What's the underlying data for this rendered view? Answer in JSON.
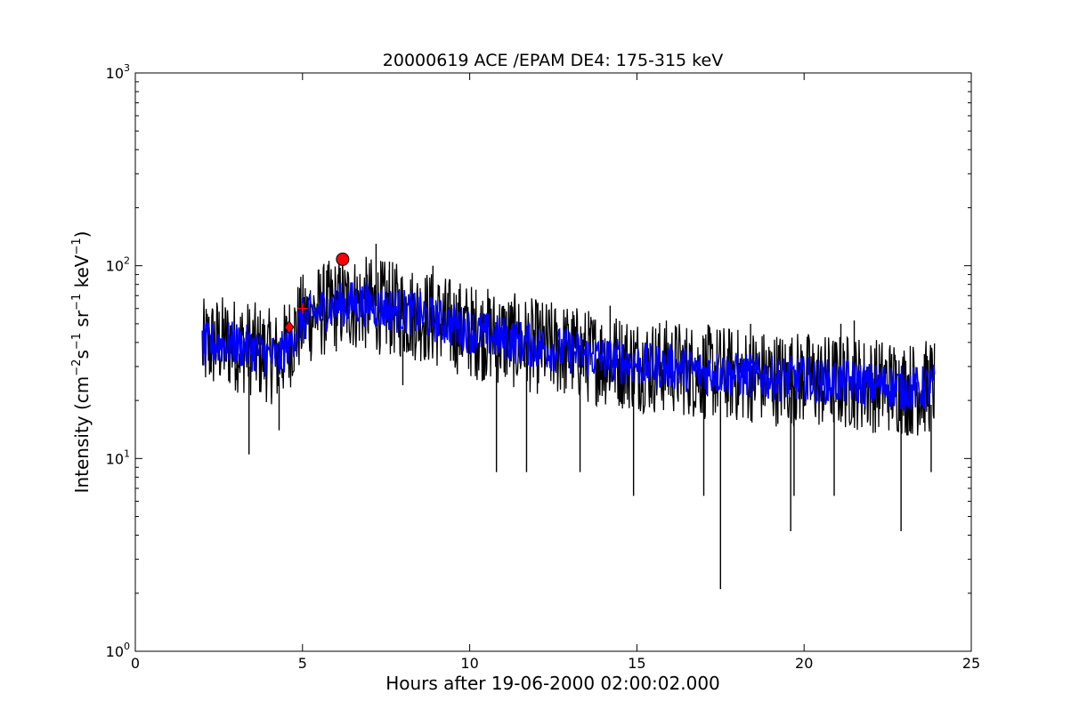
{
  "chart_data": {
    "type": "line",
    "title": "20000619 ACE /EPAM DE4: 175-315 keV",
    "xlabel": "Hours after 19-06-2000 02:00:02.000",
    "ylabel": {
      "parts": [
        {
          "text": "Intensity (cm",
          "sup": false
        },
        {
          "text": "−2",
          "sup": true
        },
        {
          "text": "s",
          "sup": false
        },
        {
          "text": "−1",
          "sup": true
        },
        {
          "text": " sr",
          "sup": false
        },
        {
          "text": "−1",
          "sup": true
        },
        {
          "text": " keV",
          "sup": false
        },
        {
          "text": "−1",
          "sup": true
        },
        {
          "text": ")",
          "sup": false
        }
      ]
    },
    "xlim": [
      0,
      25
    ],
    "ylim": [
      1,
      1000
    ],
    "yscale": "log",
    "grid": false,
    "xticks": [
      {
        "value": 0,
        "label": "0"
      },
      {
        "value": 5,
        "label": "5"
      },
      {
        "value": 10,
        "label": "10"
      },
      {
        "value": 15,
        "label": "15"
      },
      {
        "value": 20,
        "label": "20"
      },
      {
        "value": 25,
        "label": "25"
      }
    ],
    "yticks": [
      {
        "value": 1,
        "base": "10",
        "exp": "0"
      },
      {
        "value": 10,
        "base": "10",
        "exp": "1"
      },
      {
        "value": 100,
        "base": "10",
        "exp": "2"
      },
      {
        "value": 1000,
        "base": "10",
        "exp": "3"
      }
    ],
    "series": [
      {
        "color": "#000000",
        "style": "noisy raw intensity",
        "x": [
          2.0,
          2.5,
          3.0,
          3.5,
          4.0,
          4.3,
          4.6,
          5.0,
          5.5,
          6.0,
          6.5,
          7.0,
          7.5,
          8.0,
          8.5,
          9.0,
          9.5,
          10.0,
          10.5,
          11.0,
          11.5,
          12.0,
          12.5,
          13.0,
          13.5,
          14.0,
          14.5,
          15.0,
          15.5,
          16.0,
          16.5,
          17.0,
          17.5,
          18.0,
          18.5,
          19.0,
          19.5,
          20.0,
          20.5,
          21.0,
          21.5,
          22.0,
          22.5,
          23.0,
          23.5,
          23.9
        ],
        "y": [
          38,
          40,
          39,
          37,
          34,
          33,
          40,
          52,
          58,
          62,
          64,
          63,
          60,
          58,
          56,
          52,
          49,
          46,
          44,
          42,
          40,
          38,
          37,
          36,
          34,
          33,
          32,
          31,
          30,
          30,
          29,
          28,
          28,
          27,
          27,
          26,
          26,
          26,
          25,
          25,
          25,
          24,
          24,
          23,
          23,
          24
        ],
        "min_spikes": [
          {
            "x": 3.4,
            "y": 10.5
          },
          {
            "x": 4.3,
            "y": 14
          },
          {
            "x": 8.0,
            "y": 24
          },
          {
            "x": 10.8,
            "y": 8.5
          },
          {
            "x": 11.7,
            "y": 8.5
          },
          {
            "x": 13.3,
            "y": 8.5
          },
          {
            "x": 14.9,
            "y": 6.4
          },
          {
            "x": 17.0,
            "y": 6.4
          },
          {
            "x": 17.5,
            "y": 2.1
          },
          {
            "x": 19.6,
            "y": 4.2
          },
          {
            "x": 19.7,
            "y": 6.4
          },
          {
            "x": 20.9,
            "y": 6.4
          },
          {
            "x": 22.9,
            "y": 4.2
          },
          {
            "x": 23.8,
            "y": 8.5
          }
        ],
        "max_spikes": [
          {
            "x": 6.2,
            "y": 115
          },
          {
            "x": 7.2,
            "y": 130
          },
          {
            "x": 7.6,
            "y": 105
          },
          {
            "x": 8.9,
            "y": 100
          },
          {
            "x": 14.2,
            "y": 62
          },
          {
            "x": 18.4,
            "y": 50
          },
          {
            "x": 21.1,
            "y": 50
          },
          {
            "x": 21.5,
            "y": 52
          }
        ]
      },
      {
        "color": "#0000ff",
        "style": "smoothed intensity",
        "x": [
          2.0,
          2.5,
          3.0,
          3.5,
          4.0,
          4.3,
          4.6,
          5.0,
          5.5,
          6.0,
          6.5,
          7.0,
          7.5,
          8.0,
          8.5,
          9.0,
          9.5,
          10.0,
          10.5,
          11.0,
          11.5,
          12.0,
          12.5,
          13.0,
          13.5,
          14.0,
          14.5,
          15.0,
          15.5,
          16.0,
          16.5,
          17.0,
          17.5,
          18.0,
          18.5,
          19.0,
          19.5,
          20.0,
          20.5,
          21.0,
          21.5,
          22.0,
          22.5,
          23.0,
          23.5,
          23.9
        ],
        "y": [
          38,
          40,
          39,
          37,
          34,
          33,
          40,
          52,
          58,
          62,
          64,
          63,
          60,
          58,
          56,
          52,
          49,
          46,
          44,
          42,
          40,
          38,
          37,
          36,
          34,
          33,
          32,
          31,
          30,
          30,
          29,
          28,
          28,
          27,
          27,
          26,
          26,
          26,
          25,
          25,
          25,
          24,
          24,
          23,
          23,
          24
        ]
      }
    ],
    "markers": [
      {
        "x": 4.6,
        "y": 48,
        "shape": "diamond",
        "color": "#ff0000"
      },
      {
        "x": 5.0,
        "y": 60,
        "shape": "plus",
        "color": "#ff0000"
      },
      {
        "x": 6.2,
        "y": 108,
        "shape": "circle",
        "color": "#ff0000"
      }
    ]
  }
}
